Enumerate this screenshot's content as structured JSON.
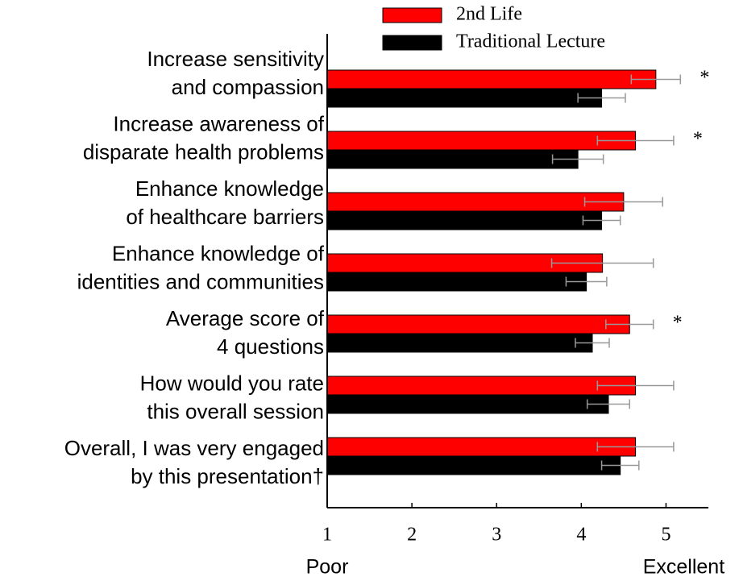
{
  "chart_data": {
    "type": "hbar",
    "categories": [
      [
        "Increase sensitivity",
        "and compassion"
      ],
      [
        "Increase awareness of",
        "disparate health problems"
      ],
      [
        "Enhance knowledge",
        "of healthcare barriers"
      ],
      [
        "Enhance knowledge of",
        "identities and communities"
      ],
      [
        "Average score of",
        "4 questions"
      ],
      [
        "How would you rate",
        "this overall session"
      ],
      [
        "Overall, I was very engaged",
        "by this presentation†"
      ]
    ],
    "series": [
      {
        "name": "2nd Life",
        "color": "#ff0000",
        "values": [
          4.88,
          4.64,
          4.5,
          4.25,
          4.57,
          4.64,
          4.64
        ],
        "errors": [
          0.29,
          0.45,
          0.46,
          0.6,
          0.28,
          0.45,
          0.45
        ]
      },
      {
        "name": "Traditional Lecture",
        "color": "#000000",
        "values": [
          4.24,
          3.96,
          4.24,
          4.06,
          4.13,
          4.32,
          4.46
        ],
        "errors": [
          0.28,
          0.3,
          0.22,
          0.24,
          0.2,
          0.25,
          0.22
        ]
      }
    ],
    "xlim": [
      1,
      5.5
    ],
    "xticks": [
      1,
      2,
      3,
      4,
      5
    ],
    "x_end_labels": [
      "Poor",
      "Excellent"
    ],
    "error_color": "#999999",
    "annotations": [
      {
        "text": "*",
        "category": 0
      },
      {
        "text": "*",
        "category": 1
      },
      {
        "text": "*",
        "category": 4
      }
    ]
  }
}
